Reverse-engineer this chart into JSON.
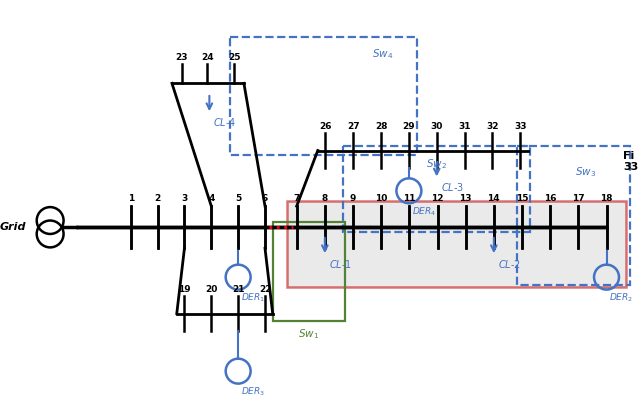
{
  "fig_width": 6.4,
  "fig_height": 4.19,
  "dpi": 100,
  "bg_color": "#ffffff",
  "line_color": "#000000",
  "dashed_color": "#4472c4",
  "red_rect_color": "#c00000",
  "green_line_color": "#548235",
  "red_dot_color": "#ff0000",
  "gray_fill": "#d9d9d9",
  "note_text": "Fi\n33"
}
